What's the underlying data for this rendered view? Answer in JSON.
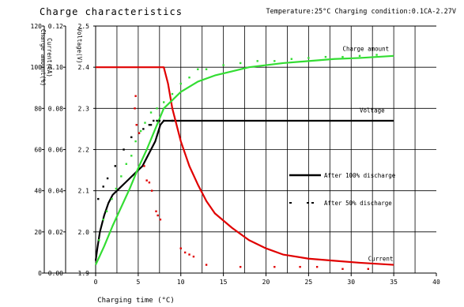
{
  "header": {
    "title": "Charge characteristics",
    "condition": "Temperature:25°C Charging condition:0.1CA-2.27V"
  },
  "chart_data": {
    "type": "line",
    "title": "Charge characteristics",
    "subtitle": "Temperature:25°C Charging condition:0.1CA-2.27V",
    "xlabel": "Charging time (°C)",
    "xlim": [
      0,
      40
    ],
    "xticks": [
      0,
      5,
      10,
      15,
      20,
      25,
      30,
      35,
      40
    ],
    "grid": true,
    "axes": [
      {
        "id": "charge",
        "label": "Charge amount(%)",
        "lim": [
          0,
          120
        ],
        "ticks": [
          "0",
          "20",
          "40",
          "60",
          "80",
          "100",
          "120"
        ]
      },
      {
        "id": "current",
        "label": "Current(CA)",
        "lim": [
          0,
          0.12
        ],
        "ticks": [
          "0.00",
          "0.02",
          "0.04",
          "0.06",
          "0.08",
          "0.10",
          "0.12"
        ]
      },
      {
        "id": "voltage",
        "label": "Voltage(V)",
        "lim": [
          1.9,
          2.5
        ],
        "ticks": [
          "1.9",
          "2.0",
          "2.1",
          "2.2",
          "2.3",
          "2.4",
          "2.5"
        ]
      }
    ],
    "annotations": [
      {
        "text": "Charge amount",
        "x": 29,
        "axis": "charge",
        "y": 108
      },
      {
        "text": "Voltage",
        "x": 31,
        "axis": "voltage",
        "y": 2.29
      },
      {
        "text": "Current",
        "x": 32,
        "axis": "current",
        "y": 0.006
      }
    ],
    "legend": [
      {
        "label": "After 100% discharge",
        "style": "solid"
      },
      {
        "label": "After 50% discharge",
        "style": "dotted"
      }
    ],
    "series": [
      {
        "key": "voltage_100",
        "axis": "voltage",
        "color": "#000000",
        "style": "solid",
        "x": [
          0,
          0.2,
          0.5,
          1,
          1.5,
          2,
          2.5,
          3,
          3.5,
          4,
          4.5,
          5,
          5.5,
          6,
          6.5,
          7,
          7.3,
          7.6,
          8,
          10,
          15,
          20,
          25,
          30,
          35
        ],
        "y": [
          1.93,
          1.96,
          2.0,
          2.04,
          2.07,
          2.09,
          2.1,
          2.11,
          2.12,
          2.13,
          2.14,
          2.15,
          2.16,
          2.18,
          2.2,
          2.22,
          2.24,
          2.26,
          2.27,
          2.27,
          2.27,
          2.27,
          2.27,
          2.27,
          2.27
        ]
      },
      {
        "key": "current_100",
        "axis": "current",
        "color": "#e00000",
        "style": "solid",
        "x": [
          0,
          8,
          8.5,
          9,
          10,
          11,
          12,
          13,
          14,
          16,
          18,
          20,
          22,
          25,
          28,
          31,
          35
        ],
        "y": [
          0.1,
          0.1,
          0.092,
          0.08,
          0.064,
          0.052,
          0.043,
          0.035,
          0.029,
          0.022,
          0.016,
          0.012,
          0.009,
          0.007,
          0.006,
          0.005,
          0.004
        ]
      },
      {
        "key": "charge_100",
        "axis": "charge",
        "color": "#33dd33",
        "style": "solid",
        "x": [
          0,
          1,
          2,
          3,
          4,
          5,
          6,
          7,
          8,
          9,
          10,
          12,
          14,
          16,
          18,
          20,
          22,
          25,
          28,
          31,
          35
        ],
        "y": [
          4,
          13,
          23,
          32,
          41,
          51,
          60,
          70,
          80,
          84,
          88,
          93,
          96,
          98,
          100,
          101,
          102,
          103,
          104,
          104.5,
          105.5
        ]
      },
      {
        "key": "voltage_50",
        "axis": "voltage",
        "color": "#000000",
        "style": "dotted",
        "x": [
          0.3,
          0.9,
          1.4,
          2.3,
          3.3,
          4.2,
          5.1,
          5.6,
          6.3,
          6.5,
          6.8,
          7.2,
          7.5,
          8,
          9
        ],
        "y": [
          2.08,
          2.11,
          2.13,
          2.16,
          2.2,
          2.23,
          2.24,
          2.25,
          2.26,
          2.26,
          2.27,
          2.27,
          2.27,
          2.27,
          2.27
        ]
      },
      {
        "key": "current_50",
        "axis": "current",
        "color": "#e00000",
        "style": "dotted",
        "x": [
          4.6,
          4.7,
          4.8,
          5.1,
          5.7,
          6.0,
          6.3,
          6.6,
          7.1,
          7.3,
          7.6,
          10,
          10.5,
          11,
          11.5,
          13,
          17,
          21,
          24,
          26,
          29,
          32
        ],
        "y": [
          0.08,
          0.086,
          0.072,
          0.068,
          0.052,
          0.045,
          0.044,
          0.04,
          0.03,
          0.028,
          0.026,
          0.012,
          0.01,
          0.009,
          0.008,
          0.004,
          0.003,
          0.003,
          0.003,
          0.003,
          0.002,
          0.002
        ]
      },
      {
        "key": "charge_50",
        "axis": "charge",
        "color": "#33dd33",
        "style": "dotted",
        "x": [
          0.4,
          0.9,
          1.3,
          1.9,
          2.4,
          3.0,
          3.6,
          4.2,
          4.7,
          5.3,
          5.8,
          6.5,
          7.2,
          8,
          9,
          10,
          11,
          12,
          13,
          15,
          17,
          19,
          21,
          23,
          25,
          27,
          29,
          31,
          33
        ],
        "y": [
          16,
          26,
          30,
          36,
          41,
          47,
          53,
          57,
          64,
          69,
          73,
          78,
          80,
          83,
          87,
          92,
          95,
          99,
          99,
          101,
          102,
          103,
          103,
          104,
          104.5,
          105,
          105,
          105.5,
          106
        ]
      }
    ]
  }
}
